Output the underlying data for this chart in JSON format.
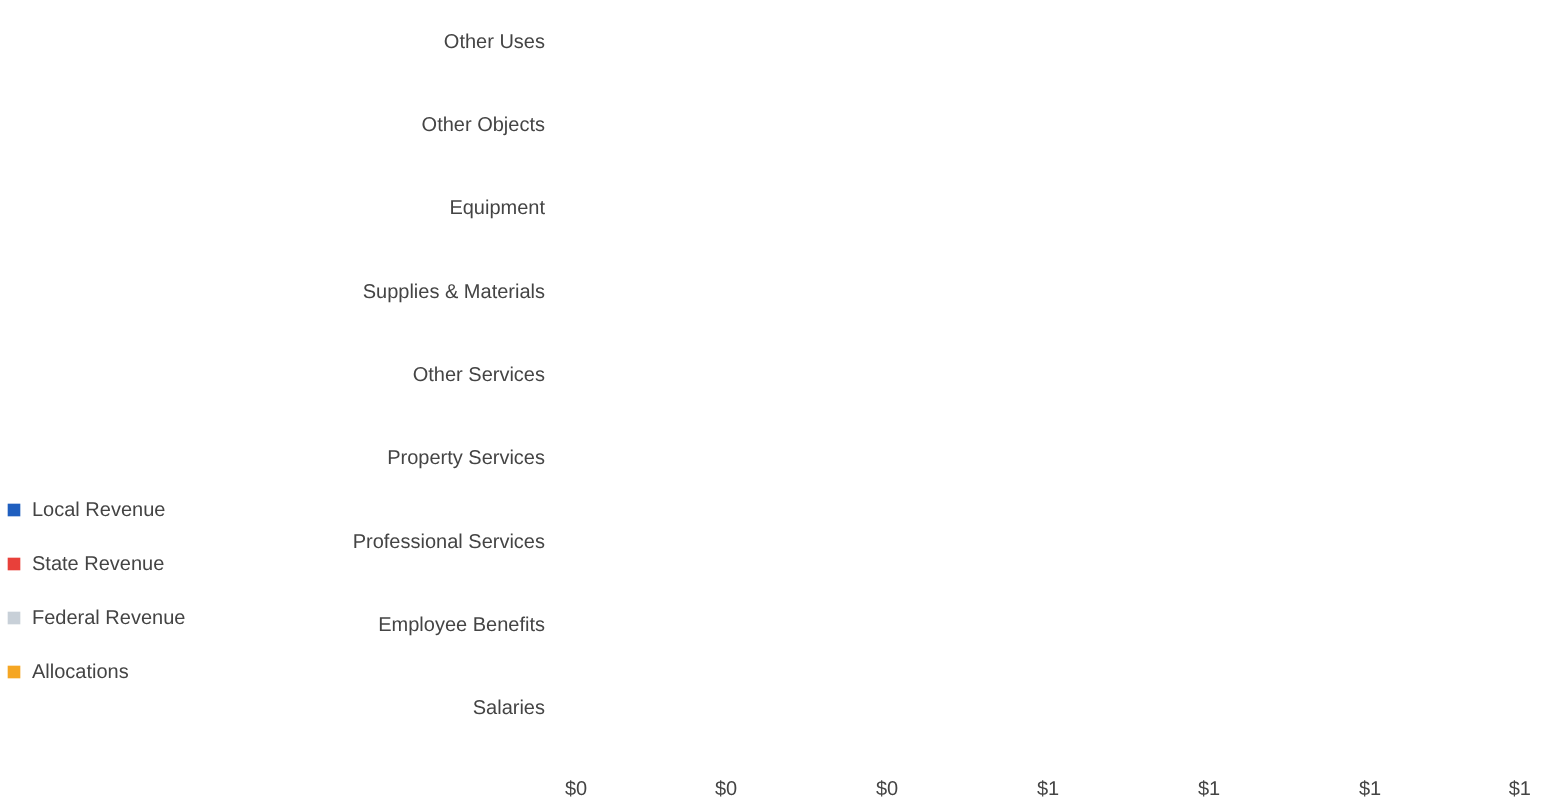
{
  "chart_data": {
    "type": "bar",
    "orientation": "horizontal",
    "categories": [
      "Other Uses",
      "Other Objects",
      "Equipment",
      "Supplies & Materials",
      "Other Services",
      "Property Services",
      "Professional Services",
      "Employee Benefits",
      "Salaries"
    ],
    "series": [
      {
        "name": "Local Revenue",
        "color": "#1f5fbf",
        "values": [
          0,
          0,
          0,
          0,
          0,
          0,
          0,
          0,
          0
        ]
      },
      {
        "name": "State Revenue",
        "color": "#e8403a",
        "values": [
          0,
          0,
          0,
          0,
          0,
          0,
          0,
          0,
          0
        ]
      },
      {
        "name": "Federal Revenue",
        "color": "#c8d0d8",
        "values": [
          0,
          0,
          0,
          0,
          0,
          0,
          0,
          0,
          0
        ]
      },
      {
        "name": "Allocations",
        "color": "#f5a623",
        "values": [
          0,
          0,
          0,
          0,
          0,
          0,
          0,
          0,
          0
        ]
      }
    ],
    "xlim": [
      0,
      1.2
    ],
    "xticks": [
      {
        "value": 0,
        "label": "$0"
      },
      {
        "value": 0.2,
        "label": "$0"
      },
      {
        "value": 0.4,
        "label": "$0"
      },
      {
        "value": 0.6,
        "label": "$1"
      },
      {
        "value": 0.8,
        "label": "$1"
      },
      {
        "value": 1,
        "label": "$1"
      },
      {
        "value": 1.2,
        "label": "$1"
      }
    ],
    "grid": false,
    "legend": "left"
  }
}
